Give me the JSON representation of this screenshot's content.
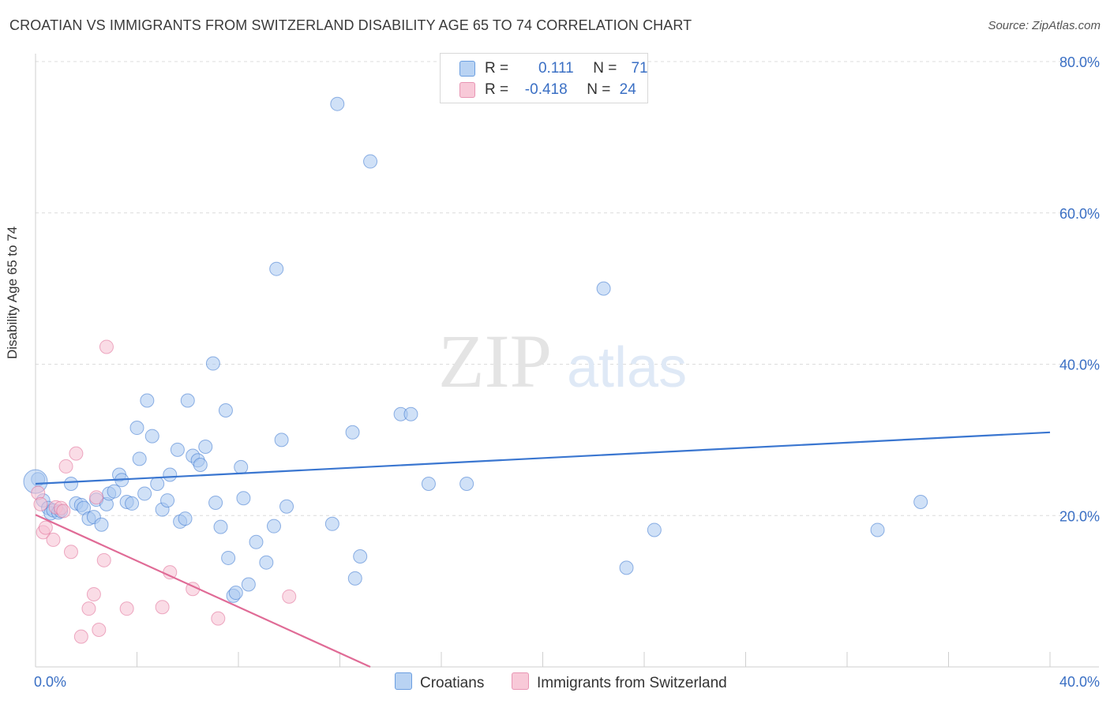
{
  "header": {
    "title": "CROATIAN VS IMMIGRANTS FROM SWITZERLAND DISABILITY AGE 65 TO 74 CORRELATION CHART",
    "source": "Source: ZipAtlas.com"
  },
  "watermark": {
    "zip": "ZIP",
    "atlas": "atlas"
  },
  "legend_top": {
    "rows": [
      {
        "r_label": "R =",
        "r_value": "0.111",
        "n_label": "N =",
        "n_value": "71",
        "color": "#9ec1ee"
      },
      {
        "r_label": "R =",
        "r_value": "-0.418",
        "n_label": "N =",
        "n_value": "24",
        "color": "#f3afc6"
      }
    ]
  },
  "chart_data": {
    "type": "scatter",
    "title": "CROATIAN VS IMMIGRANTS FROM SWITZERLAND DISABILITY AGE 65 TO 74 CORRELATION CHART",
    "xlabel": "",
    "ylabel": "Disability Age 65 to 74",
    "xlim": [
      0,
      40
    ],
    "ylim": [
      0,
      80
    ],
    "x_tick_labels": [
      "0.0%",
      "40.0%"
    ],
    "y_tick_labels": [
      "20.0%",
      "40.0%",
      "60.0%",
      "80.0%"
    ],
    "y_ticks": [
      20,
      40,
      60,
      80
    ],
    "grid": true,
    "legend_position": "bottom",
    "series": [
      {
        "name": "Croatians",
        "color": "#3a76d0",
        "fill": "#a9c8f0",
        "trend": {
          "x": [
            0,
            40
          ],
          "y": [
            24.2,
            31.0
          ]
        },
        "points": [
          [
            0.1,
            24.8
          ],
          [
            0.3,
            22.0
          ],
          [
            0.5,
            21.0
          ],
          [
            0.6,
            20.3
          ],
          [
            0.7,
            20.7
          ],
          [
            0.9,
            20.4
          ],
          [
            1.0,
            20.6
          ],
          [
            1.4,
            24.2
          ],
          [
            1.6,
            21.6
          ],
          [
            1.8,
            21.4
          ],
          [
            1.9,
            21.0
          ],
          [
            2.1,
            19.6
          ],
          [
            2.3,
            19.8
          ],
          [
            2.4,
            22.1
          ],
          [
            2.6,
            18.8
          ],
          [
            2.8,
            21.5
          ],
          [
            2.9,
            22.9
          ],
          [
            3.1,
            23.2
          ],
          [
            3.3,
            25.4
          ],
          [
            3.4,
            24.7
          ],
          [
            3.6,
            21.8
          ],
          [
            3.8,
            21.6
          ],
          [
            4.0,
            31.6
          ],
          [
            4.1,
            27.5
          ],
          [
            4.3,
            22.9
          ],
          [
            4.4,
            35.2
          ],
          [
            4.6,
            30.5
          ],
          [
            4.8,
            24.2
          ],
          [
            5.0,
            20.8
          ],
          [
            5.2,
            22.0
          ],
          [
            5.3,
            25.4
          ],
          [
            5.6,
            28.7
          ],
          [
            5.7,
            19.2
          ],
          [
            5.9,
            19.6
          ],
          [
            6.0,
            35.2
          ],
          [
            6.2,
            27.9
          ],
          [
            6.4,
            27.3
          ],
          [
            6.5,
            26.7
          ],
          [
            6.7,
            29.1
          ],
          [
            7.0,
            40.1
          ],
          [
            7.1,
            21.7
          ],
          [
            7.3,
            18.5
          ],
          [
            7.5,
            33.9
          ],
          [
            7.6,
            14.4
          ],
          [
            7.8,
            9.4
          ],
          [
            7.9,
            9.8
          ],
          [
            8.1,
            26.4
          ],
          [
            8.2,
            22.3
          ],
          [
            8.4,
            10.9
          ],
          [
            8.7,
            16.5
          ],
          [
            9.1,
            13.8
          ],
          [
            9.4,
            18.6
          ],
          [
            9.5,
            52.6
          ],
          [
            9.7,
            30.0
          ],
          [
            9.9,
            21.2
          ],
          [
            11.7,
            18.9
          ],
          [
            11.9,
            74.4
          ],
          [
            12.5,
            31.0
          ],
          [
            12.6,
            11.7
          ],
          [
            12.8,
            14.6
          ],
          [
            13.2,
            66.8
          ],
          [
            14.4,
            33.4
          ],
          [
            14.8,
            33.4
          ],
          [
            15.5,
            24.2
          ],
          [
            17.0,
            24.2
          ],
          [
            22.4,
            50.0
          ],
          [
            23.3,
            13.1
          ],
          [
            24.4,
            18.1
          ],
          [
            33.2,
            18.1
          ],
          [
            34.9,
            21.8
          ],
          [
            0.0,
            24.5
          ]
        ]
      },
      {
        "name": "Immigrants from Switzerland",
        "color": "#e06b96",
        "fill": "#f6bfd2",
        "trend": {
          "x": [
            0,
            13.2
          ],
          "y": [
            20.1,
            0
          ]
        },
        "points": [
          [
            0.1,
            23.0
          ],
          [
            0.2,
            21.5
          ],
          [
            0.3,
            17.8
          ],
          [
            0.4,
            18.4
          ],
          [
            0.7,
            16.8
          ],
          [
            0.8,
            21.1
          ],
          [
            1.0,
            21.0
          ],
          [
            1.2,
            26.5
          ],
          [
            1.4,
            15.2
          ],
          [
            1.6,
            28.2
          ],
          [
            1.8,
            4.0
          ],
          [
            2.1,
            7.7
          ],
          [
            2.3,
            9.6
          ],
          [
            2.4,
            22.4
          ],
          [
            2.5,
            4.9
          ],
          [
            2.7,
            14.1
          ],
          [
            2.8,
            42.3
          ],
          [
            3.6,
            7.7
          ],
          [
            5.0,
            7.9
          ],
          [
            5.3,
            12.5
          ],
          [
            6.2,
            10.3
          ],
          [
            7.2,
            6.4
          ],
          [
            10.0,
            9.3
          ],
          [
            1.1,
            20.6
          ]
        ]
      }
    ]
  },
  "legend_bottom": {
    "items": [
      {
        "label": "Croatians",
        "color": "#a9c8f0",
        "border": "#6b9ee0"
      },
      {
        "label": "Immigrants from Switzerland",
        "color": "#f6c8d8",
        "border": "#e896b4"
      }
    ]
  }
}
